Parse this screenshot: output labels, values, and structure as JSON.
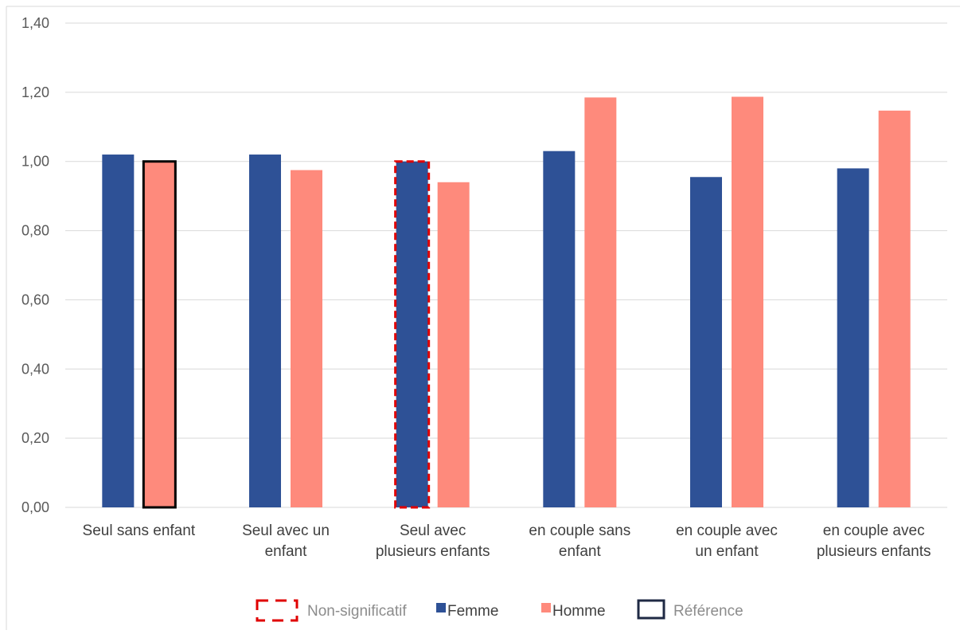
{
  "chart_data": {
    "type": "bar",
    "title": "",
    "xlabel": "",
    "ylabel": "",
    "categories": [
      [
        "Seul sans enfant"
      ],
      [
        "Seul avec un",
        "enfant"
      ],
      [
        "Seul avec",
        "plusieurs enfants"
      ],
      [
        "en couple sans",
        "enfant"
      ],
      [
        "en couple avec",
        "un enfant"
      ],
      [
        "en couple avec",
        "plusieurs enfants"
      ]
    ],
    "series": [
      {
        "name": "Femme",
        "color": "#2e5196",
        "values": [
          1.02,
          1.02,
          1.0,
          1.03,
          0.955,
          0.98
        ]
      },
      {
        "name": "Homme",
        "color": "#fe8a7c",
        "values": [
          1.0,
          0.975,
          0.94,
          1.185,
          1.187,
          1.147
        ]
      }
    ],
    "ylim": [
      0,
      1.4
    ],
    "yticks": [
      0,
      0.2,
      0.4,
      0.6,
      0.8,
      1.0,
      1.2,
      1.4
    ],
    "ytick_labels": [
      "0,00",
      "0,20",
      "0,40",
      "0,60",
      "0,80",
      "1,00",
      "1,20",
      "1,40"
    ],
    "grid": true,
    "highlights": [
      {
        "category_index": 0,
        "series_index": 1,
        "style": "reference"
      },
      {
        "category_index": 2,
        "series_index": 0,
        "style": "non-significant"
      }
    ],
    "legend": {
      "placement": "bottom",
      "items": [
        {
          "label": "Non-significatif",
          "style": "dashed-red-box",
          "color": "#e00000"
        },
        {
          "label": "Femme",
          "style": "filled",
          "color": "#2e5196"
        },
        {
          "label": "Homme",
          "style": "filled",
          "color": "#fe8a7c"
        },
        {
          "label": "Référence",
          "style": "outline-box",
          "color": "#1f2a44"
        }
      ]
    }
  }
}
